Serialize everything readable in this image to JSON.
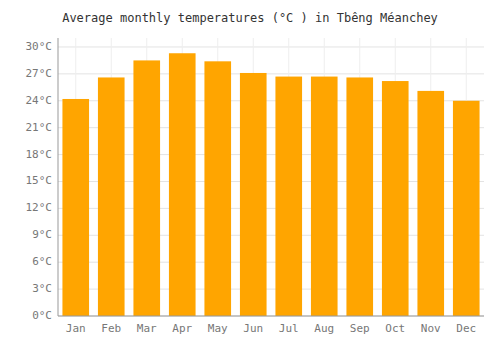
{
  "chart_data": {
    "type": "bar",
    "title": "Average monthly temperatures (°C ) in Tbêng Méanchey",
    "categories": [
      "Jan",
      "Feb",
      "Mar",
      "Apr",
      "May",
      "Jun",
      "Jul",
      "Aug",
      "Sep",
      "Oct",
      "Nov",
      "Dec"
    ],
    "values": [
      24.2,
      26.6,
      28.5,
      29.3,
      28.4,
      27.1,
      26.7,
      26.7,
      26.6,
      26.2,
      25.1,
      24.0
    ],
    "color": "#FFA500",
    "ylim": [
      0,
      31
    ],
    "yticks": [
      {
        "value": 0,
        "label": "0°C"
      },
      {
        "value": 3,
        "label": "3°C"
      },
      {
        "value": 6,
        "label": "6°C"
      },
      {
        "value": 9,
        "label": "9°C"
      },
      {
        "value": 12,
        "label": "12°C"
      },
      {
        "value": 15,
        "label": "15°C"
      },
      {
        "value": 18,
        "label": "18°C"
      },
      {
        "value": 21,
        "label": "21°C"
      },
      {
        "value": 24,
        "label": "24°C"
      },
      {
        "value": 27,
        "label": "27°C"
      },
      {
        "value": 30,
        "label": "30°C"
      }
    ],
    "grid": true
  }
}
